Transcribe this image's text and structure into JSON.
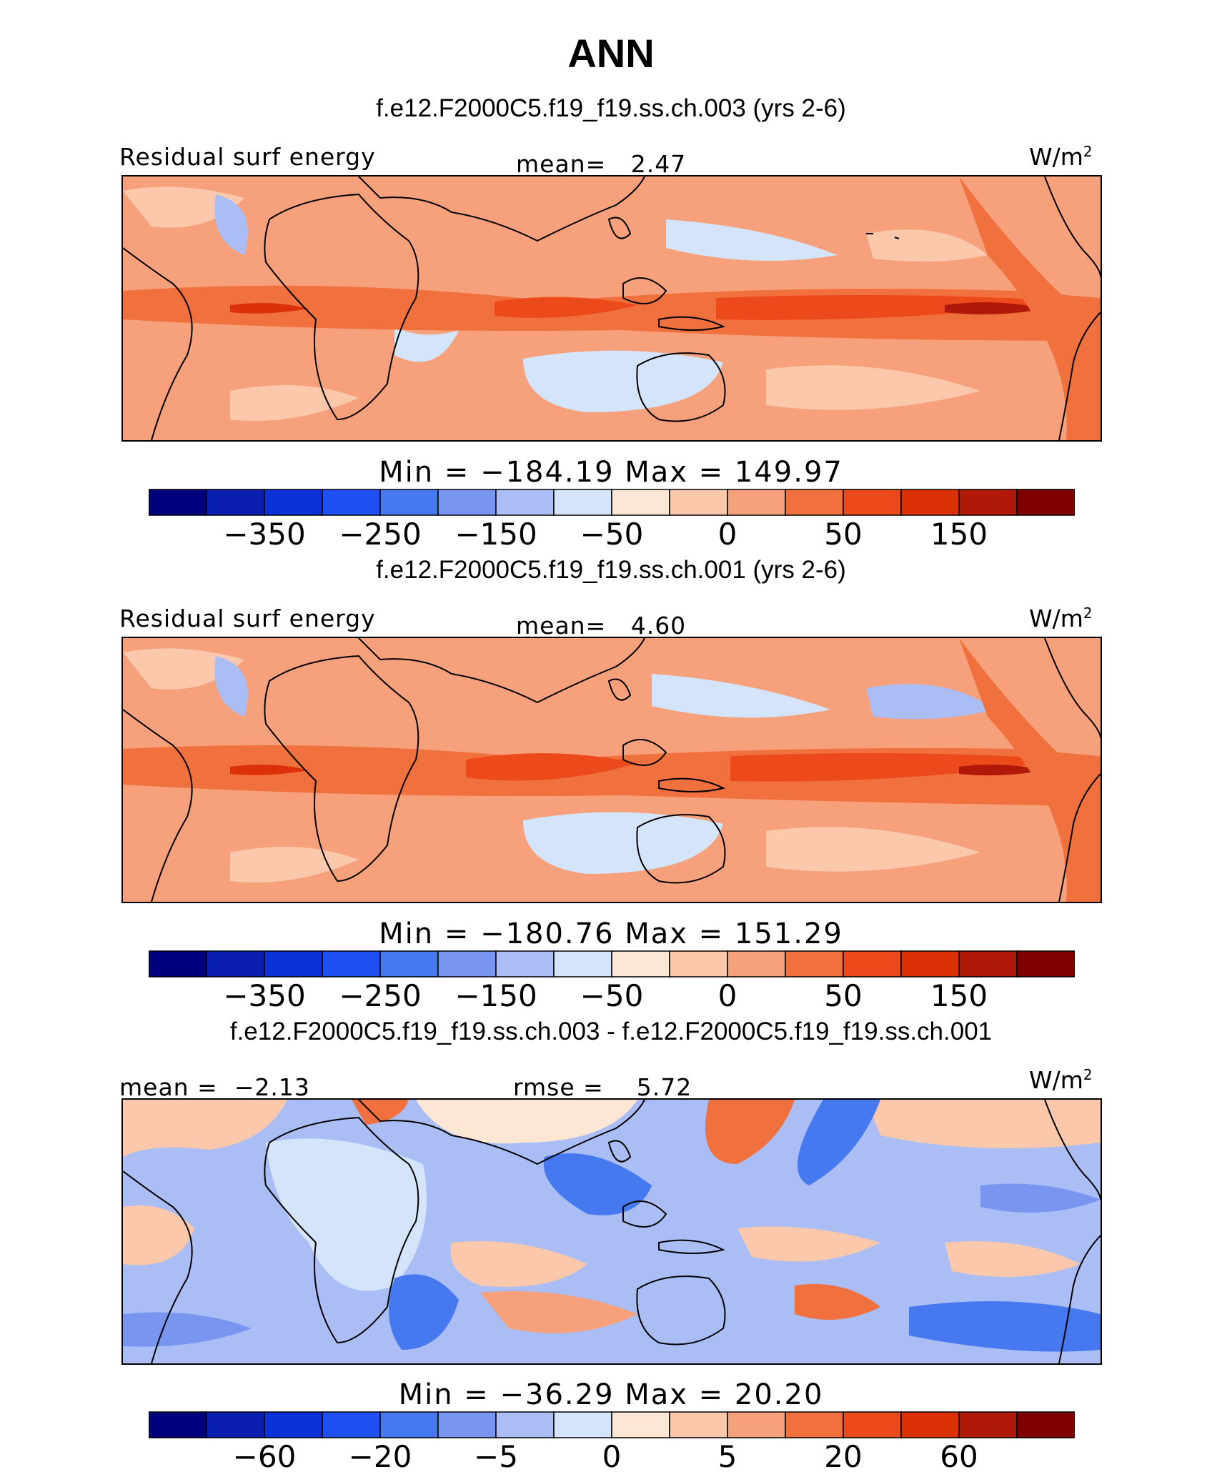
{
  "title": "ANN",
  "panels": [
    {
      "case_title": "f.e12.F2000C5.f19_f19.ss.ch.003 (yrs 2-6)",
      "left_label": "Residual surf energy",
      "center_label": "mean=   2.47",
      "units": "W/m",
      "units_sup": "2",
      "minmax": "Min = −184.19 Max = 149.97",
      "ticks": [
        "−350",
        "−250",
        "−150",
        "−50",
        "0",
        "50",
        "150"
      ]
    },
    {
      "case_title": "f.e12.F2000C5.f19_f19.ss.ch.001 (yrs 2-6)",
      "left_label": "Residual surf energy",
      "center_label": "mean=   4.60",
      "units": "W/m",
      "units_sup": "2",
      "minmax": "Min = −180.76 Max = 151.29",
      "ticks": [
        "−350",
        "−250",
        "−150",
        "−50",
        "0",
        "50",
        "150"
      ]
    },
    {
      "case_title": "f.e12.F2000C5.f19_f19.ss.ch.003 - f.e12.F2000C5.f19_f19.ss.ch.001",
      "left_label": "mean =  −2.13",
      "center_label": "rmse =    5.72",
      "units": "W/m",
      "units_sup": "2",
      "minmax": "Min = −36.29 Max =  20.20",
      "ticks": [
        "−60",
        "−20",
        "−5",
        "0",
        "5",
        "20",
        "60"
      ]
    }
  ],
  "palette": [
    "#00007f",
    "#0a1fb0",
    "#0a32d8",
    "#1e50f5",
    "#4678f0",
    "#7896f0",
    "#aabef5",
    "#d4e4fa",
    "#fde6d4",
    "#fbc8ac",
    "#f6a07c",
    "#f0703e",
    "#ec4a1a",
    "#dc3008",
    "#b01808",
    "#7f0000"
  ],
  "map_colors": {
    "base_warm": "#f6a07c",
    "light_warm": "#fbc8ac",
    "pale_warm": "#fde6d4",
    "pale_cool": "#d4e4fa",
    "light_cool": "#aabef5",
    "mid_cool": "#7896f0",
    "strong_cool": "#4678f0",
    "warm_band": "#f0703e",
    "hot_band": "#ec4a1a",
    "core": "#b01808",
    "coast": "#000000"
  }
}
